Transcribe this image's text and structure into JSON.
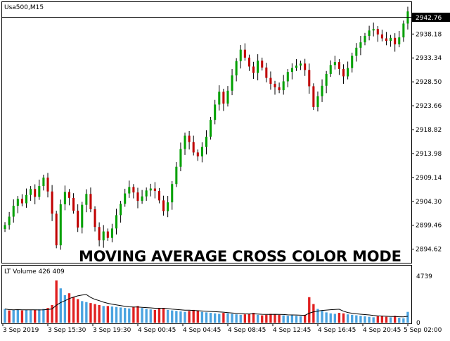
{
  "price_panel": {
    "symbol_title": "Usa500,M15",
    "current_price_label": "2942.76",
    "overlay_title": "MOVING AVERAGE CROSS COLOR MODE",
    "y_ticks": [
      "2938.18",
      "2933.34",
      "2928.50",
      "2923.66",
      "2918.82",
      "2913.98",
      "2909.14",
      "2904.30",
      "2899.46",
      "2894.62"
    ]
  },
  "volume_panel": {
    "title": "LT Volume 426 409",
    "y_ticks": [
      "4739",
      "0"
    ]
  },
  "time_axis": {
    "labels": [
      "3 Sep 2019",
      "3 Sep 15:30",
      "3 Sep 19:30",
      "4 Sep 00:45",
      "4 Sep 04:45",
      "4 Sep 08:45",
      "4 Sep 12:45",
      "4 Sep 16:45",
      "4 Sep 20:45",
      "5 Sep 02:00"
    ]
  },
  "colors": {
    "up_candle": "#00a000",
    "down_candle": "#c00000",
    "vol_up": "#4aa3e0",
    "vol_down": "#e02020",
    "vol_ma": "#000000",
    "frame": "#000000"
  },
  "chart_data": [
    {
      "type": "candlestick",
      "symbol": "Usa500",
      "timeframe": "M15",
      "ylim": [
        2892.0,
        2944.5
      ],
      "close": [
        2899.5,
        2901.2,
        2903.4,
        2904.8,
        2903.9,
        2905.6,
        2906.8,
        2905.2,
        2907.4,
        2909.1,
        2906.3,
        2901.8,
        2895.4,
        2903.7,
        2906.2,
        2905.0,
        2902.4,
        2899.0,
        2903.6,
        2905.8,
        2902.7,
        2899.1,
        2896.4,
        2898.2,
        2896.9,
        2898.8,
        2901.5,
        2903.8,
        2905.9,
        2907.2,
        2906.1,
        2904.4,
        2905.3,
        2906.5,
        2906.9,
        2906.4,
        2904.5,
        2902.3,
        2904.1,
        2907.8,
        2911.3,
        2914.9,
        2917.6,
        2916.3,
        2914.2,
        2913.4,
        2915.3,
        2917.4,
        2920.8,
        2923.9,
        2926.5,
        2924.1,
        2926.7,
        2929.8,
        2932.7,
        2935.0,
        2933.4,
        2931.6,
        2930.3,
        2932.8,
        2931.4,
        2929.3,
        2928.1,
        2927.4,
        2926.8,
        2928.6,
        2930.5,
        2931.3,
        2931.8,
        2932.2,
        2930.9,
        2927.6,
        2923.4,
        2925.6,
        2927.7,
        2930.1,
        2931.9,
        2932.5,
        2931.1,
        2929.6,
        2931.3,
        2933.8,
        2935.4,
        2936.5,
        2937.8,
        2938.9,
        2939.2,
        2938.1,
        2937.3,
        2936.8,
        2937.4,
        2936.1,
        2937.5,
        2940.3,
        2942.76
      ],
      "note_volume_scale": [
        0,
        4739
      ],
      "volume_is_up": [
        true,
        false,
        true,
        true,
        false,
        true,
        true,
        false,
        true,
        true,
        false,
        false,
        false,
        true,
        true,
        false,
        false,
        false,
        true,
        true,
        false,
        false,
        false,
        true,
        false,
        true,
        true,
        true,
        true,
        true,
        false,
        false,
        true,
        true,
        true,
        false,
        false,
        false,
        true,
        true,
        true,
        true,
        true,
        false,
        false,
        false,
        true,
        true,
        true,
        true,
        true,
        false,
        true,
        true,
        true,
        true,
        false,
        false,
        false,
        true,
        false,
        false,
        false,
        false,
        false,
        true,
        true,
        true,
        true,
        true,
        false,
        false,
        false,
        true,
        true,
        true,
        true,
        true,
        false,
        false,
        true,
        true,
        true,
        true,
        true,
        true,
        true,
        false,
        false,
        false,
        true,
        false,
        true,
        true,
        true
      ],
      "volume": [
        1400,
        1250,
        1300,
        1350,
        1250,
        1300,
        1280,
        1300,
        1350,
        1400,
        1500,
        1800,
        4300,
        3500,
        2800,
        3000,
        2600,
        2400,
        2200,
        2100,
        2000,
        1900,
        1800,
        1700,
        1700,
        1650,
        1600,
        1550,
        1500,
        1450,
        1600,
        1700,
        1500,
        1400,
        1350,
        1300,
        1450,
        1500,
        1300,
        1250,
        1200,
        1150,
        1100,
        1200,
        1300,
        1250,
        1100,
        1050,
        1000,
        950,
        900,
        1000,
        950,
        900,
        850,
        800,
        850,
        900,
        1000,
        800,
        750,
        800,
        900,
        850,
        800,
        750,
        700,
        750,
        700,
        650,
        800,
        2600,
        1900,
        1400,
        1200,
        1050,
        950,
        900,
        1000,
        950,
        850,
        800,
        750,
        700,
        650,
        600,
        550,
        650,
        700,
        600,
        550,
        700,
        500,
        450,
        1100
      ],
      "volume_ma_label": "LT Volume"
    }
  ]
}
